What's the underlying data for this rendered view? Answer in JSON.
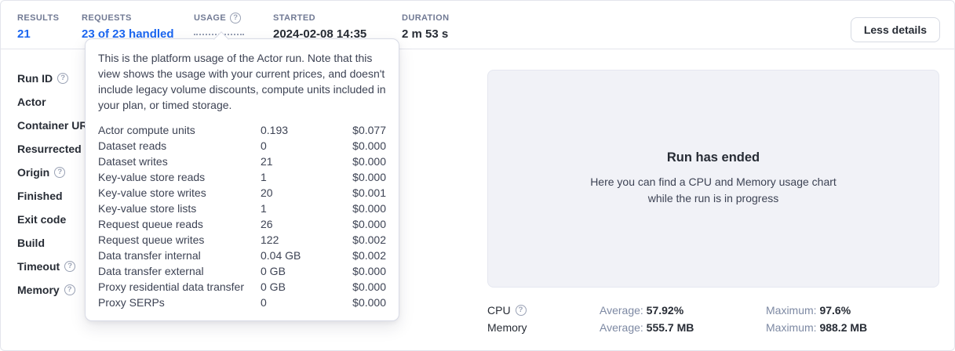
{
  "colors": {
    "accent_blue": "#1b66f0",
    "panel_bg": "#f1f2f7",
    "muted_label": "#7d89a3",
    "header_label": "#717a94"
  },
  "icons": {
    "help": "?"
  },
  "header": {
    "stats": [
      {
        "label": "RESULTS",
        "value": "21"
      },
      {
        "label": "REQUESTS",
        "value": "23 of 23 handled"
      },
      {
        "label": "USAGE",
        "value": ""
      },
      {
        "label": "STARTED",
        "value": "2024-02-08 14:35"
      },
      {
        "label": "DURATION",
        "value": "2 m 53 s"
      }
    ],
    "less_details_label": "Less details"
  },
  "run_fields": [
    {
      "label": "Run ID",
      "help": true
    },
    {
      "label": "Actor",
      "help": false
    },
    {
      "label": "Container URL",
      "help": false
    },
    {
      "label": "Resurrected",
      "help": false
    },
    {
      "label": "Origin",
      "help": true
    },
    {
      "label": "Finished",
      "help": false
    },
    {
      "label": "Exit code",
      "help": false
    },
    {
      "label": "Build",
      "help": false
    },
    {
      "label": "Timeout",
      "help": true
    },
    {
      "label": "Memory",
      "help": true
    }
  ],
  "tooltip": {
    "description": "This is the platform usage of the Actor run. Note that this view shows the usage with your current prices, and doesn't include legacy volume discounts, compute units included in your plan, or timed storage.",
    "rows": [
      {
        "label": "Actor compute units",
        "quantity": "0.193",
        "price": "$0.077"
      },
      {
        "label": "Dataset reads",
        "quantity": "0",
        "price": "$0.000"
      },
      {
        "label": "Dataset writes",
        "quantity": "21",
        "price": "$0.000"
      },
      {
        "label": "Key-value store reads",
        "quantity": "1",
        "price": "$0.000"
      },
      {
        "label": "Key-value store writes",
        "quantity": "20",
        "price": "$0.001"
      },
      {
        "label": "Key-value store lists",
        "quantity": "1",
        "price": "$0.000"
      },
      {
        "label": "Request queue reads",
        "quantity": "26",
        "price": "$0.000"
      },
      {
        "label": "Request queue writes",
        "quantity": "122",
        "price": "$0.002"
      },
      {
        "label": "Data transfer internal",
        "quantity": "0.04 GB",
        "price": "$0.002"
      },
      {
        "label": "Data transfer external",
        "quantity": "0 GB",
        "price": "$0.000"
      },
      {
        "label": "Proxy residential data transfer",
        "quantity": "0 GB",
        "price": "$0.000"
      },
      {
        "label": "Proxy SERPs",
        "quantity": "0",
        "price": "$0.000"
      }
    ]
  },
  "ended_panel": {
    "title": "Run has ended",
    "subtitle_line1": "Here you can find a CPU and Memory usage chart",
    "subtitle_line2": "while the run is in progress"
  },
  "metrics": [
    {
      "label": "CPU",
      "help": true,
      "avg_label": "Average:",
      "avg_value": "57.92%",
      "max_label": "Maximum:",
      "max_value": "97.6%"
    },
    {
      "label": "Memory",
      "help": false,
      "avg_label": "Average:",
      "avg_value": "555.7 MB",
      "max_label": "Maximum:",
      "max_value": "988.2 MB"
    }
  ]
}
